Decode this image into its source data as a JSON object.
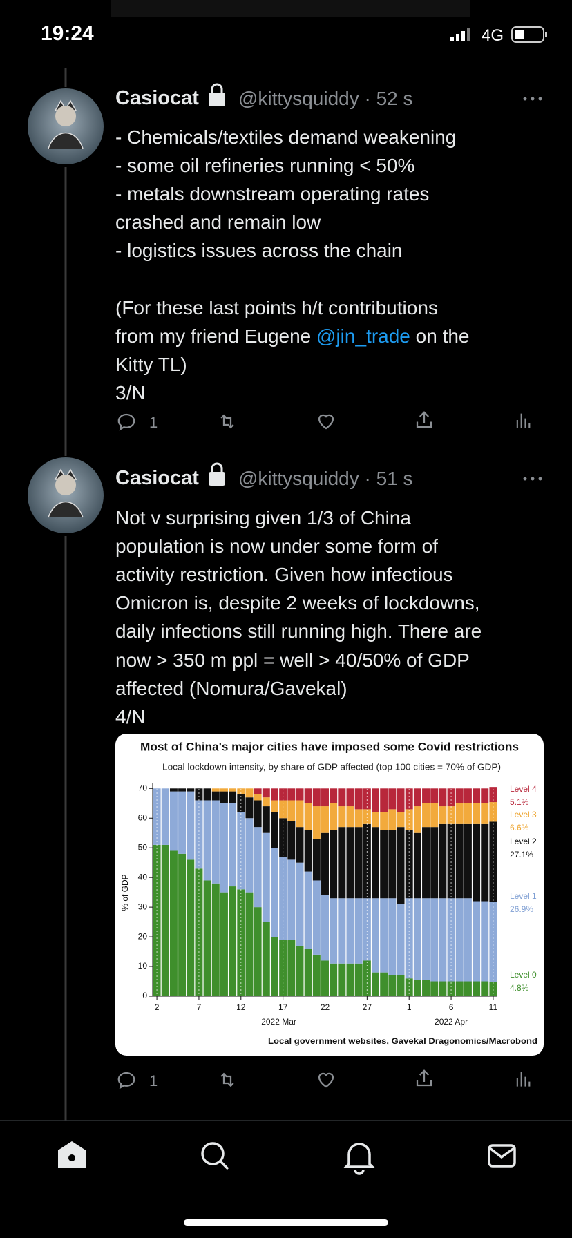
{
  "status_bar": {
    "time": "19:24",
    "network": "4G"
  },
  "tweets": [
    {
      "name": "Casiocat",
      "meta": "@kittysquiddy · 52 s",
      "replies": 1,
      "paragraphs": [
        [
          "- Chemicals/textiles demand weakening",
          "- some oil refineries running < 50%",
          "- metals downstream operating rates",
          "crashed and remain low",
          "- logistics issues across the chain"
        ],
        [
          "(For these last points h/t contributions",
          [
            "from my friend Eugene ",
            "@jin_trade",
            " on the"
          ],
          "Kitty TL)",
          "3/N"
        ]
      ]
    },
    {
      "name": "Casiocat",
      "meta": "@kittysquiddy · 51 s",
      "replies": 1,
      "paragraphs": [
        [
          "Not v surprising given 1/3 of China",
          "population is now under some form of",
          "activity restriction. Given how infectious",
          "Omicron is, despite 2 weeks of lockdowns,",
          "daily infections still running high. There are",
          "now > 350 m ppl = well > 40/50% of GDP",
          "affected (Nomura/Gavekal)",
          "4/N"
        ]
      ]
    }
  ],
  "chart_data": {
    "type": "stacked_bar",
    "title": "Most of China's major cities have imposed some Covid restrictions",
    "subtitle": "Local lockdown intensity, by share of GDP affected (top 100 cities = 70% of GDP)",
    "y_label": "% of GDP",
    "source": "Local government websites, Gavekal Dragonomics/Macrobond",
    "x_period_labels": [
      "2022 Mar",
      "2022 Apr"
    ],
    "categories": [
      "2",
      null,
      null,
      null,
      null,
      "7",
      null,
      null,
      null,
      null,
      "12",
      null,
      null,
      null,
      null,
      "17",
      null,
      null,
      null,
      null,
      "22",
      null,
      null,
      null,
      null,
      "27",
      null,
      null,
      null,
      null,
      "1",
      null,
      null,
      null,
      null,
      "6",
      null,
      null,
      null,
      null,
      "11"
    ],
    "ylim": [
      0,
      71
    ],
    "yticks": [
      0,
      10,
      20,
      30,
      40,
      50,
      60,
      70
    ],
    "series": [
      {
        "name": "Level 0",
        "color": "#3f8f2c",
        "values": [
          51,
          51,
          49,
          48,
          46,
          43,
          39,
          38,
          35,
          37,
          36,
          35,
          30,
          25,
          20,
          19,
          19,
          17,
          16,
          14,
          12,
          11,
          11,
          11,
          11,
          12,
          8,
          8,
          7,
          7,
          6,
          5.5,
          5.5,
          5,
          5,
          5,
          5,
          5,
          5,
          5,
          4.8
        ],
        "value_labels": [
          null,
          null,
          null,
          null,
          null,
          null,
          null,
          null,
          null,
          null,
          null,
          null,
          null,
          null,
          null,
          null,
          null,
          null,
          null,
          null,
          null,
          null,
          null,
          null,
          null,
          null,
          null,
          null,
          null,
          null,
          null,
          null,
          null,
          null,
          null,
          null,
          null,
          null,
          null,
          null,
          "4.8%"
        ]
      },
      {
        "name": "Level 1",
        "color": "#8eaad8",
        "values": [
          19,
          19,
          20,
          21,
          23,
          23,
          27,
          28,
          30,
          28,
          26,
          25,
          27,
          30,
          30,
          28,
          27,
          28,
          26,
          25,
          22,
          22,
          22,
          22,
          22,
          21,
          25,
          25,
          26,
          24,
          27,
          27.5,
          27.5,
          28,
          28,
          28,
          28,
          28,
          27,
          27,
          26.9
        ],
        "value_labels": [
          null,
          null,
          null,
          null,
          null,
          null,
          null,
          null,
          null,
          null,
          null,
          null,
          null,
          null,
          null,
          null,
          null,
          null,
          null,
          null,
          null,
          null,
          null,
          null,
          null,
          null,
          null,
          null,
          null,
          null,
          null,
          null,
          null,
          null,
          null,
          null,
          null,
          null,
          null,
          null,
          "26.9%"
        ]
      },
      {
        "name": "Level 2",
        "color": "#111111",
        "values": [
          0,
          0,
          1,
          1,
          1,
          4,
          4,
          3,
          4,
          4,
          6,
          7,
          9,
          9,
          12,
          13,
          13,
          12,
          14,
          14,
          21,
          23,
          24,
          24,
          24,
          25,
          24,
          23,
          23,
          26,
          23,
          22,
          24,
          24,
          25,
          25,
          25,
          25,
          26,
          26,
          27.1
        ],
        "value_labels": [
          null,
          null,
          null,
          null,
          null,
          null,
          null,
          null,
          null,
          null,
          null,
          null,
          null,
          null,
          null,
          null,
          null,
          null,
          null,
          null,
          null,
          null,
          null,
          null,
          null,
          null,
          null,
          null,
          null,
          null,
          null,
          null,
          null,
          null,
          null,
          null,
          null,
          null,
          null,
          null,
          "27.1%"
        ]
      },
      {
        "name": "Level 3",
        "color": "#f2aa3c",
        "values": [
          0,
          0,
          0,
          0,
          0,
          0,
          0,
          1,
          1,
          1,
          2,
          3,
          2,
          3,
          4,
          6,
          7,
          9,
          9,
          11,
          9,
          9,
          7,
          7,
          6,
          5,
          5,
          6,
          7,
          5,
          7,
          9,
          8,
          8,
          6,
          6,
          7,
          7,
          7,
          7,
          6.6
        ],
        "value_labels": [
          null,
          null,
          null,
          null,
          null,
          null,
          null,
          null,
          null,
          null,
          null,
          null,
          null,
          null,
          null,
          null,
          null,
          null,
          null,
          null,
          null,
          null,
          null,
          null,
          null,
          null,
          null,
          null,
          null,
          null,
          null,
          null,
          null,
          null,
          null,
          null,
          null,
          null,
          null,
          null,
          "6.6%"
        ]
      },
      {
        "name": "Level 4",
        "color": "#b8273b",
        "values": [
          0,
          0,
          0,
          0,
          0,
          0,
          0,
          0,
          0,
          0,
          0,
          0,
          2,
          3,
          4,
          4,
          4,
          4,
          5,
          6,
          6,
          5,
          6,
          6,
          7,
          7,
          8,
          8,
          7,
          8,
          7,
          6,
          5,
          5,
          6,
          6,
          5,
          5,
          5,
          5,
          5.1
        ],
        "value_labels": [
          null,
          null,
          null,
          null,
          null,
          null,
          null,
          null,
          null,
          null,
          null,
          null,
          null,
          null,
          null,
          null,
          null,
          null,
          null,
          null,
          null,
          null,
          null,
          null,
          null,
          null,
          null,
          null,
          null,
          null,
          null,
          null,
          null,
          null,
          null,
          null,
          null,
          null,
          null,
          null,
          "5.1%"
        ]
      }
    ]
  }
}
